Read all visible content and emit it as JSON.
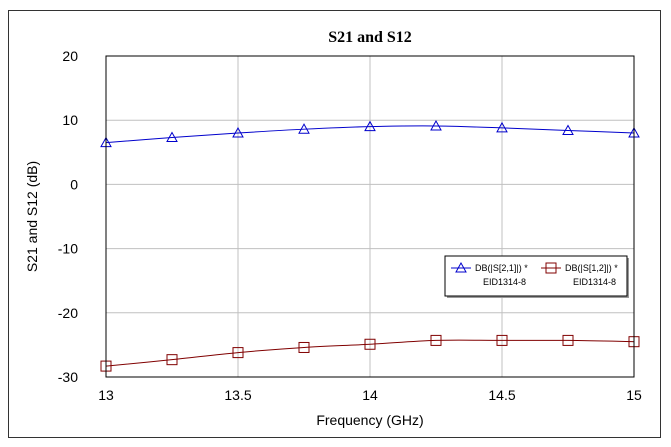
{
  "chart_data": {
    "type": "line",
    "title": "S21 and S12",
    "xlabel": "Frequency (GHz)",
    "ylabel": "S21 and S12 (dB)",
    "xlim": [
      13,
      15
    ],
    "ylim": [
      -30,
      20
    ],
    "xticks": [
      13,
      13.5,
      14,
      14.5,
      15
    ],
    "xtick_labels": [
      "13",
      "13.5",
      "14",
      "14.5",
      "15"
    ],
    "yticks": [
      -30,
      -20,
      -10,
      0,
      10,
      20
    ],
    "ytick_labels": [
      "-30",
      "-20",
      "-10",
      "0",
      "10",
      "20"
    ],
    "grid": true,
    "legend_placement": "right",
    "series": [
      {
        "name": "DB(|S[2,1]|) *",
        "label": "EID1314-8",
        "marker": "triangle",
        "color": "#0000cc",
        "x": [
          13,
          13.25,
          13.5,
          13.75,
          14,
          14.25,
          14.5,
          14.75,
          15
        ],
        "y": [
          6.5,
          7.3,
          8.0,
          8.6,
          9.0,
          9.1,
          8.8,
          8.4,
          8.0
        ]
      },
      {
        "name": "DB(|S[1,2]|) *",
        "label": "EID1314-8",
        "marker": "square",
        "color": "#800000",
        "x": [
          13,
          13.25,
          13.5,
          13.75,
          14,
          14.25,
          14.5,
          14.75,
          15
        ],
        "y": [
          -28.3,
          -27.3,
          -26.2,
          -25.4,
          -24.9,
          -24.3,
          -24.3,
          -24.3,
          -24.5
        ]
      }
    ]
  }
}
